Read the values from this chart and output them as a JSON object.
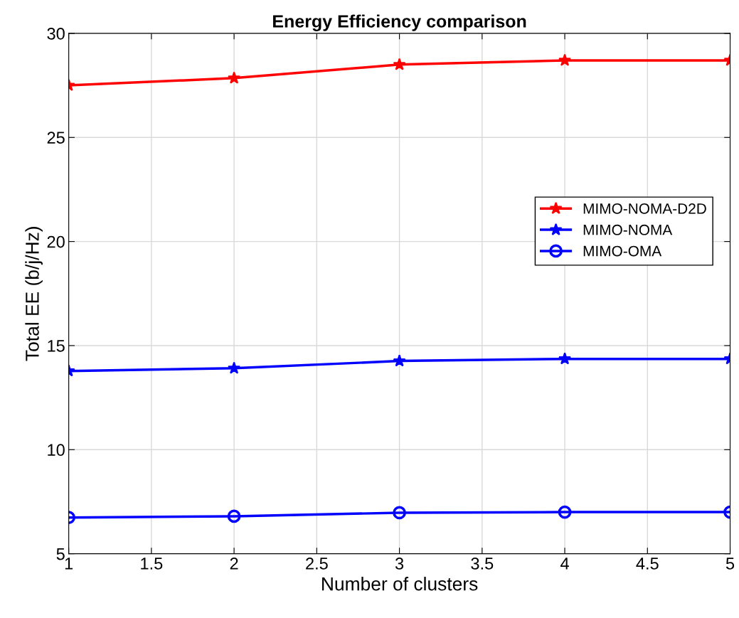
{
  "chart_data": {
    "type": "line",
    "title": "Energy Efficiency comparison",
    "xlabel": "Number of clusters",
    "ylabel": "Total EE (b/j/Hz)",
    "x": [
      1,
      2,
      3,
      4,
      5
    ],
    "series": [
      {
        "name": "MIMO-NOMA-D2D",
        "color": "#ff0000",
        "marker": "star",
        "values": [
          27.5,
          27.85,
          28.5,
          28.7,
          28.7
        ]
      },
      {
        "name": "MIMO-NOMA",
        "color": "#0000ff",
        "marker": "star",
        "values": [
          13.78,
          13.91,
          14.26,
          14.36,
          14.36
        ]
      },
      {
        "name": "MIMO-OMA",
        "color": "#0000ff",
        "marker": "circle",
        "values": [
          6.74,
          6.8,
          6.97,
          7.0,
          7.0
        ]
      }
    ],
    "xlim": [
      1,
      5
    ],
    "xticks": [
      1,
      1.5,
      2,
      2.5,
      3,
      3.5,
      4,
      4.5,
      5
    ],
    "ylim": [
      5,
      30
    ],
    "yticks": [
      5,
      10,
      15,
      20,
      25,
      30
    ],
    "grid": true,
    "legend": "center right",
    "line_style": "solid"
  }
}
